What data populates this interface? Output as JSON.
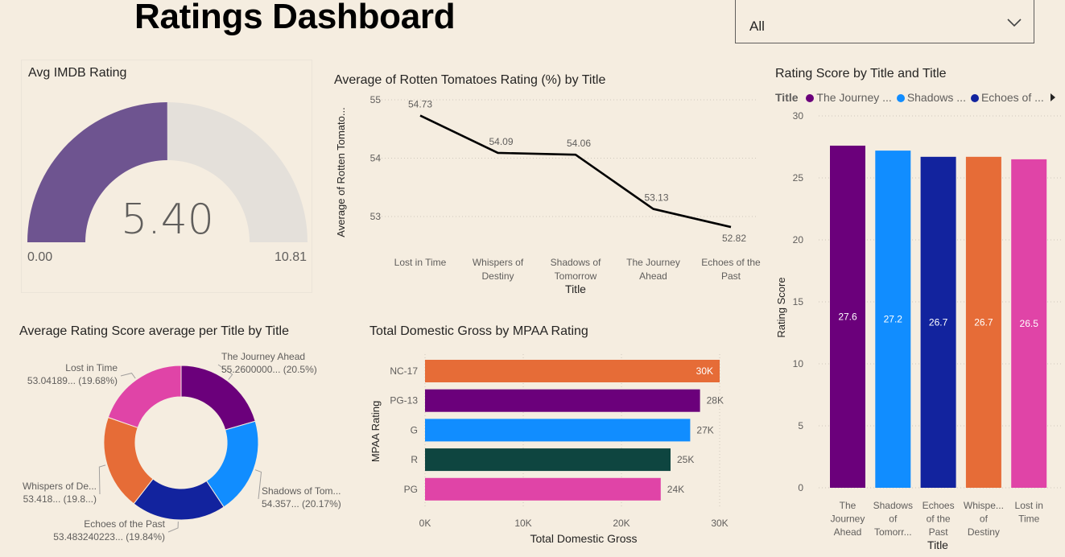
{
  "header": {
    "title": "Ratings Dashboard"
  },
  "slicer": {
    "selected": "All"
  },
  "gauge": {
    "title": "Avg IMDB Rating",
    "value": 5.4,
    "value_label": "5.40",
    "min_label": "0.00",
    "max_label": "10.81",
    "fill_color": "#6e5490",
    "track_color": "#e4e0da"
  },
  "chart_data": [
    {
      "id": "line",
      "type": "line",
      "title": "Average of Rotten Tomatoes Rating (%) by Title",
      "xlabel": "Title",
      "ylabel": "Average of Rotten Tomato...",
      "categories": [
        [
          "Lost in Time"
        ],
        [
          "Whispers of",
          "Destiny"
        ],
        [
          "Shadows of",
          "Tomorrow"
        ],
        [
          "The Journey",
          "Ahead"
        ],
        [
          "Echoes of the",
          "Past"
        ]
      ],
      "values": [
        54.73,
        54.09,
        54.06,
        53.13,
        52.82
      ],
      "value_labels": [
        "54.73",
        "54.09",
        "54.06",
        "53.13",
        "52.82"
      ],
      "yticks": [
        53,
        54,
        55
      ],
      "ylim": [
        52.7,
        55.0
      ],
      "grid": true
    },
    {
      "id": "bars",
      "type": "bar",
      "title": "Rating Score by Title and Title",
      "legend_title": "Title",
      "legend": [
        {
          "name": "The Journey ...",
          "color": "#6b007b"
        },
        {
          "name": "Shadows ...",
          "color": "#118dff"
        },
        {
          "name": "Echoes of ...",
          "color": "#12239e"
        }
      ],
      "xlabel": "Title",
      "ylabel": "Rating Score",
      "categories": [
        [
          "The",
          "Journey",
          "Ahead"
        ],
        [
          "Shadows",
          "of",
          "Tomorr..."
        ],
        [
          "Echoes",
          "of the",
          "Past"
        ],
        [
          "Whispe...",
          "of",
          "Destiny"
        ],
        [
          "Lost in",
          "Time"
        ]
      ],
      "values": [
        27.6,
        27.2,
        26.7,
        26.7,
        26.5
      ],
      "value_labels": [
        "27.6",
        "27.2",
        "26.7",
        "26.7",
        "26.5"
      ],
      "colors": [
        "#6b007b",
        "#118dff",
        "#12239e",
        "#e66c37",
        "#e044a7"
      ],
      "yticks": [
        0,
        5,
        10,
        15,
        20,
        25,
        30
      ],
      "ylim": [
        0,
        30
      ],
      "grid": true
    },
    {
      "id": "donut",
      "type": "pie",
      "title": "Average Rating Score average per Title by Title",
      "slices": [
        {
          "name": "The Journey Ahead",
          "value": 20.5,
          "label2": "55.2600000... (20.5%)",
          "color": "#6b007b"
        },
        {
          "name": "Shadows of Tom...",
          "value": 20.17,
          "label2": "54.357... (20.17%)",
          "color": "#118dff"
        },
        {
          "name": "Echoes of the Past",
          "value": 19.84,
          "label2": "53.483240223... (19.84%)",
          "color": "#12239e"
        },
        {
          "name": "Whispers of De...",
          "value": 19.81,
          "label2": "53.418... (19.8...)",
          "color": "#e66c37"
        },
        {
          "name": "Lost in Time",
          "value": 19.68,
          "label2": "53.04189... (19.68%)",
          "color": "#e044a7"
        }
      ]
    },
    {
      "id": "hbars",
      "type": "bar",
      "orientation": "horizontal",
      "title": "Total Domestic Gross by MPAA Rating",
      "xlabel": "Total Domestic Gross",
      "ylabel": "MPAA Rating",
      "categories": [
        "NC-17",
        "PG-13",
        "G",
        "R",
        "PG"
      ],
      "values": [
        30000,
        28000,
        27000,
        25000,
        24000
      ],
      "value_labels": [
        "30K",
        "28K",
        "27K",
        "25K",
        "24K"
      ],
      "colors": [
        "#e66c37",
        "#6b007b",
        "#118dff",
        "#0e4540",
        "#e044a7"
      ],
      "xticks": [
        0,
        10000,
        20000,
        30000
      ],
      "xtick_labels": [
        "0K",
        "10K",
        "20K",
        "30K"
      ],
      "xlim": [
        0,
        30000
      ]
    }
  ]
}
